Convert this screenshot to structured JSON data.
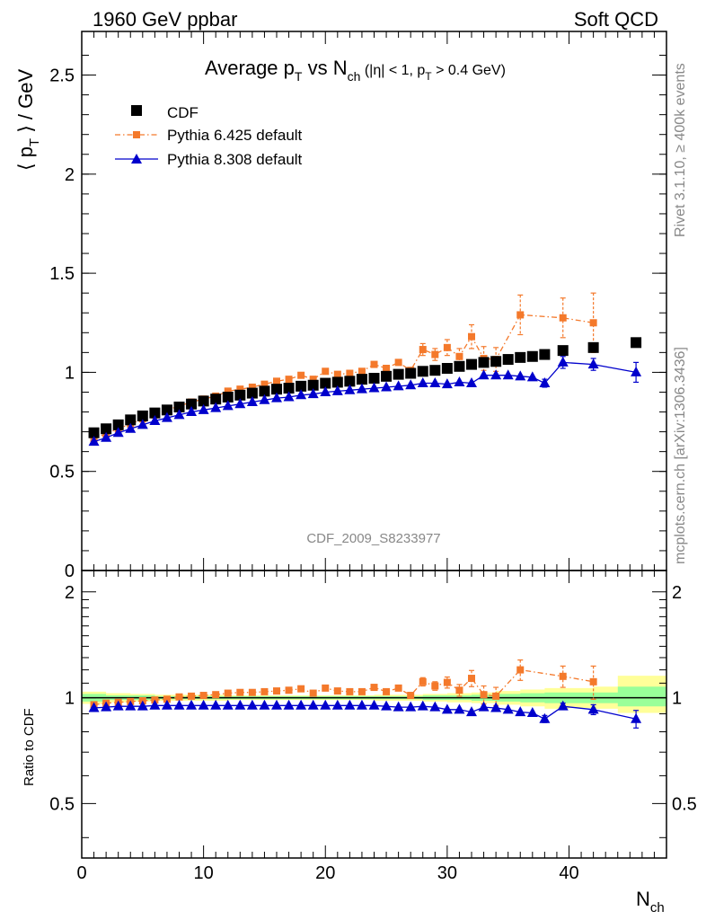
{
  "header": {
    "left": "1960 GeV ppbar",
    "right": "Soft QCD"
  },
  "side_text": {
    "right_top": "Rivet 3.1.10, ≥ 400k events",
    "right_bottom": "mcplots.cern.ch [arXiv:1306.3436]"
  },
  "watermark": "CDF_2009_S8233977",
  "chart_data": [
    {
      "type": "scatter",
      "title": "Average p_T vs N_ch (|η| < 1, p_T > 0.4 GeV)",
      "title_parts": {
        "a": "Average p",
        "a_sub": "T",
        "b": " vs N",
        "b_sub": "ch",
        "c": " (|η| < 1, p",
        "c_sub": "T",
        "d": " > 0.4 GeV)"
      },
      "ylabel_parts": {
        "open": "⟨ p",
        "sub": "T",
        "close": " ⟩ / GeV"
      },
      "xlim": [
        0,
        48
      ],
      "ylim": [
        0,
        2.72
      ],
      "yticks": [
        0,
        0.5,
        1,
        1.5,
        2,
        2.5
      ],
      "ytick_labels": [
        "0",
        "0.5",
        "1",
        "1.5",
        "2",
        "2.5"
      ],
      "legend_position": "top-left",
      "series": [
        {
          "name": "CDF",
          "color": "#000000",
          "marker": "square",
          "x": [
            1,
            2,
            3,
            4,
            5,
            6,
            7,
            8,
            9,
            10,
            11,
            12,
            13,
            14,
            15,
            16,
            17,
            18,
            19,
            20,
            21,
            22,
            23,
            24,
            25,
            26,
            27,
            28,
            29,
            30,
            31,
            32,
            33,
            34,
            35,
            36,
            37,
            38,
            39.5,
            42,
            45.5
          ],
          "y": [
            0.695,
            0.715,
            0.735,
            0.76,
            0.78,
            0.795,
            0.81,
            0.825,
            0.84,
            0.855,
            0.865,
            0.875,
            0.885,
            0.895,
            0.905,
            0.915,
            0.92,
            0.93,
            0.935,
            0.945,
            0.95,
            0.955,
            0.965,
            0.97,
            0.98,
            0.99,
            0.995,
            1.005,
            1.01,
            1.02,
            1.03,
            1.04,
            1.05,
            1.055,
            1.065,
            1.075,
            1.08,
            1.09,
            1.11,
            1.125,
            1.15
          ]
        },
        {
          "name": "Pythia 6.425 default",
          "color": "#f4792b",
          "marker": "square-small",
          "line": "dashdot",
          "x": [
            1,
            2,
            3,
            4,
            5,
            6,
            7,
            8,
            9,
            10,
            11,
            12,
            13,
            14,
            15,
            16,
            17,
            18,
            19,
            20,
            21,
            22,
            23,
            24,
            25,
            26,
            27,
            28,
            29,
            30,
            31,
            32,
            33,
            34,
            36,
            39.5,
            42
          ],
          "y": [
            0.665,
            0.69,
            0.715,
            0.74,
            0.765,
            0.785,
            0.81,
            0.83,
            0.85,
            0.865,
            0.88,
            0.905,
            0.915,
            0.925,
            0.94,
            0.955,
            0.965,
            0.985,
            0.965,
            1.005,
            0.99,
            0.995,
            1.005,
            1.04,
            1.02,
            1.05,
            1.01,
            1.115,
            1.09,
            1.125,
            1.08,
            1.18,
            1.07,
            1.065,
            1.29,
            1.275,
            1.25
          ],
          "err": [
            0,
            0,
            0,
            0,
            0,
            0,
            0,
            0,
            0,
            0,
            0,
            0,
            0,
            0,
            0,
            0,
            0,
            0,
            0,
            0,
            0,
            0,
            0,
            0,
            0,
            0,
            0,
            0.03,
            0.03,
            0.04,
            0.04,
            0.06,
            0.06,
            0.06,
            0.1,
            0.1,
            0.15
          ]
        },
        {
          "name": "Pythia 8.308 default",
          "color": "#0000cc",
          "marker": "triangle",
          "line": "solid",
          "x": [
            1,
            2,
            3,
            4,
            5,
            6,
            7,
            8,
            9,
            10,
            11,
            12,
            13,
            14,
            15,
            16,
            17,
            18,
            19,
            20,
            21,
            22,
            23,
            24,
            25,
            26,
            27,
            28,
            29,
            30,
            31,
            32,
            33,
            34,
            35,
            36,
            37,
            38,
            39.5,
            42,
            45.5
          ],
          "y": [
            0.65,
            0.67,
            0.695,
            0.715,
            0.735,
            0.755,
            0.77,
            0.785,
            0.8,
            0.81,
            0.82,
            0.83,
            0.84,
            0.85,
            0.86,
            0.87,
            0.875,
            0.885,
            0.89,
            0.9,
            0.905,
            0.91,
            0.915,
            0.92,
            0.925,
            0.93,
            0.935,
            0.945,
            0.945,
            0.94,
            0.95,
            0.945,
            0.985,
            0.985,
            0.985,
            0.98,
            0.975,
            0.945,
            1.05,
            1.04,
            1.0
          ],
          "err": [
            0,
            0,
            0,
            0,
            0,
            0,
            0,
            0,
            0,
            0,
            0,
            0,
            0,
            0,
            0,
            0,
            0,
            0,
            0,
            0,
            0,
            0,
            0,
            0,
            0,
            0,
            0,
            0,
            0,
            0,
            0,
            0,
            0,
            0,
            0,
            0,
            0,
            0.02,
            0.03,
            0.03,
            0.05
          ]
        }
      ]
    },
    {
      "type": "scatter",
      "ylabel": "Ratio to CDF",
      "xlabel_parts": {
        "main": "N",
        "sub": "ch"
      },
      "xlim": [
        0,
        48
      ],
      "ylim": [
        0.35,
        2.3
      ],
      "yticks": [
        0.5,
        1,
        2
      ],
      "ytick_labels": [
        "0.5",
        "1",
        "2"
      ],
      "xticks": [
        0,
        10,
        20,
        30,
        40
      ],
      "xtick_labels": [
        "0",
        "10",
        "20",
        "30",
        "40"
      ],
      "reference_line": 1,
      "bands": [
        {
          "name": "yellow",
          "color": "#ffff99",
          "x": [
            0,
            2,
            4,
            6,
            8,
            10,
            12,
            14,
            16,
            18,
            20,
            22,
            24,
            26,
            28,
            30,
            32,
            34,
            36,
            38,
            40,
            42,
            44,
            46,
            48
          ],
          "lo": [
            0.96,
            0.97,
            0.975,
            0.98,
            0.98,
            0.98,
            0.985,
            0.985,
            0.985,
            0.985,
            0.985,
            0.985,
            0.98,
            0.98,
            0.975,
            0.97,
            0.965,
            0.955,
            0.945,
            0.93,
            0.935,
            0.93,
            0.905,
            0.905,
            0.91
          ],
          "hi": [
            1.04,
            1.03,
            1.025,
            1.02,
            1.02,
            1.02,
            1.015,
            1.015,
            1.015,
            1.015,
            1.015,
            1.015,
            1.02,
            1.02,
            1.025,
            1.03,
            1.035,
            1.045,
            1.055,
            1.065,
            1.065,
            1.075,
            1.155,
            1.155,
            1.15
          ]
        },
        {
          "name": "green",
          "color": "#99ff99",
          "x": [
            0,
            2,
            4,
            6,
            8,
            10,
            12,
            14,
            16,
            18,
            20,
            22,
            24,
            26,
            28,
            30,
            32,
            34,
            36,
            38,
            40,
            42,
            44,
            46,
            48
          ],
          "lo": [
            0.975,
            0.985,
            0.985,
            0.99,
            0.99,
            0.99,
            0.99,
            0.99,
            0.99,
            0.99,
            0.99,
            0.99,
            0.99,
            0.99,
            0.985,
            0.985,
            0.98,
            0.975,
            0.97,
            0.965,
            0.965,
            0.965,
            0.945,
            0.945,
            0.95
          ],
          "hi": [
            1.025,
            1.015,
            1.015,
            1.01,
            1.01,
            1.01,
            1.01,
            1.01,
            1.01,
            1.01,
            1.01,
            1.01,
            1.01,
            1.01,
            1.015,
            1.015,
            1.02,
            1.025,
            1.03,
            1.035,
            1.035,
            1.035,
            1.075,
            1.075,
            1.07
          ]
        }
      ],
      "series": [
        {
          "name": "Pythia 6.425 / CDF",
          "color": "#f4792b",
          "marker": "square-small",
          "line": "dashdot",
          "x": [
            1,
            2,
            3,
            4,
            5,
            6,
            7,
            8,
            9,
            10,
            11,
            12,
            13,
            14,
            15,
            16,
            17,
            18,
            19,
            20,
            21,
            22,
            23,
            24,
            25,
            26,
            27,
            28,
            29,
            30,
            31,
            32,
            33,
            34,
            36,
            39.5,
            42
          ],
          "y": [
            0.955,
            0.965,
            0.97,
            0.975,
            0.98,
            0.985,
            0.99,
            1.005,
            1.01,
            1.015,
            1.02,
            1.03,
            1.035,
            1.035,
            1.04,
            1.045,
            1.05,
            1.06,
            1.03,
            1.065,
            1.045,
            1.04,
            1.04,
            1.07,
            1.04,
            1.065,
            1.015,
            1.11,
            1.08,
            1.105,
            1.05,
            1.135,
            1.02,
            1.01,
            1.2,
            1.15,
            1.11
          ],
          "err": [
            0,
            0,
            0,
            0,
            0,
            0,
            0,
            0,
            0,
            0,
            0,
            0,
            0,
            0,
            0,
            0,
            0,
            0,
            0,
            0,
            0,
            0,
            0,
            0,
            0,
            0,
            0,
            0.03,
            0.03,
            0.04,
            0.04,
            0.06,
            0.06,
            0.06,
            0.08,
            0.08,
            0.12
          ]
        },
        {
          "name": "Pythia 8.308 / CDF",
          "color": "#0000cc",
          "marker": "triangle",
          "line": "solid",
          "x": [
            1,
            2,
            3,
            4,
            5,
            6,
            7,
            8,
            9,
            10,
            11,
            12,
            13,
            14,
            15,
            16,
            17,
            18,
            19,
            20,
            21,
            22,
            23,
            24,
            25,
            26,
            27,
            28,
            29,
            30,
            31,
            32,
            33,
            34,
            35,
            36,
            37,
            38,
            39.5,
            42,
            45.5
          ],
          "y": [
            0.935,
            0.94,
            0.945,
            0.945,
            0.945,
            0.95,
            0.95,
            0.95,
            0.95,
            0.95,
            0.95,
            0.95,
            0.95,
            0.95,
            0.95,
            0.95,
            0.95,
            0.95,
            0.95,
            0.95,
            0.95,
            0.95,
            0.95,
            0.95,
            0.945,
            0.94,
            0.94,
            0.945,
            0.94,
            0.925,
            0.925,
            0.91,
            0.94,
            0.935,
            0.925,
            0.91,
            0.905,
            0.87,
            0.945,
            0.925,
            0.87
          ],
          "err": [
            0,
            0,
            0,
            0,
            0,
            0,
            0,
            0,
            0,
            0,
            0,
            0,
            0,
            0,
            0,
            0,
            0,
            0,
            0,
            0,
            0,
            0,
            0,
            0,
            0,
            0,
            0,
            0,
            0,
            0,
            0,
            0,
            0,
            0,
            0,
            0,
            0,
            0.02,
            0.02,
            0.03,
            0.05
          ]
        }
      ]
    }
  ]
}
